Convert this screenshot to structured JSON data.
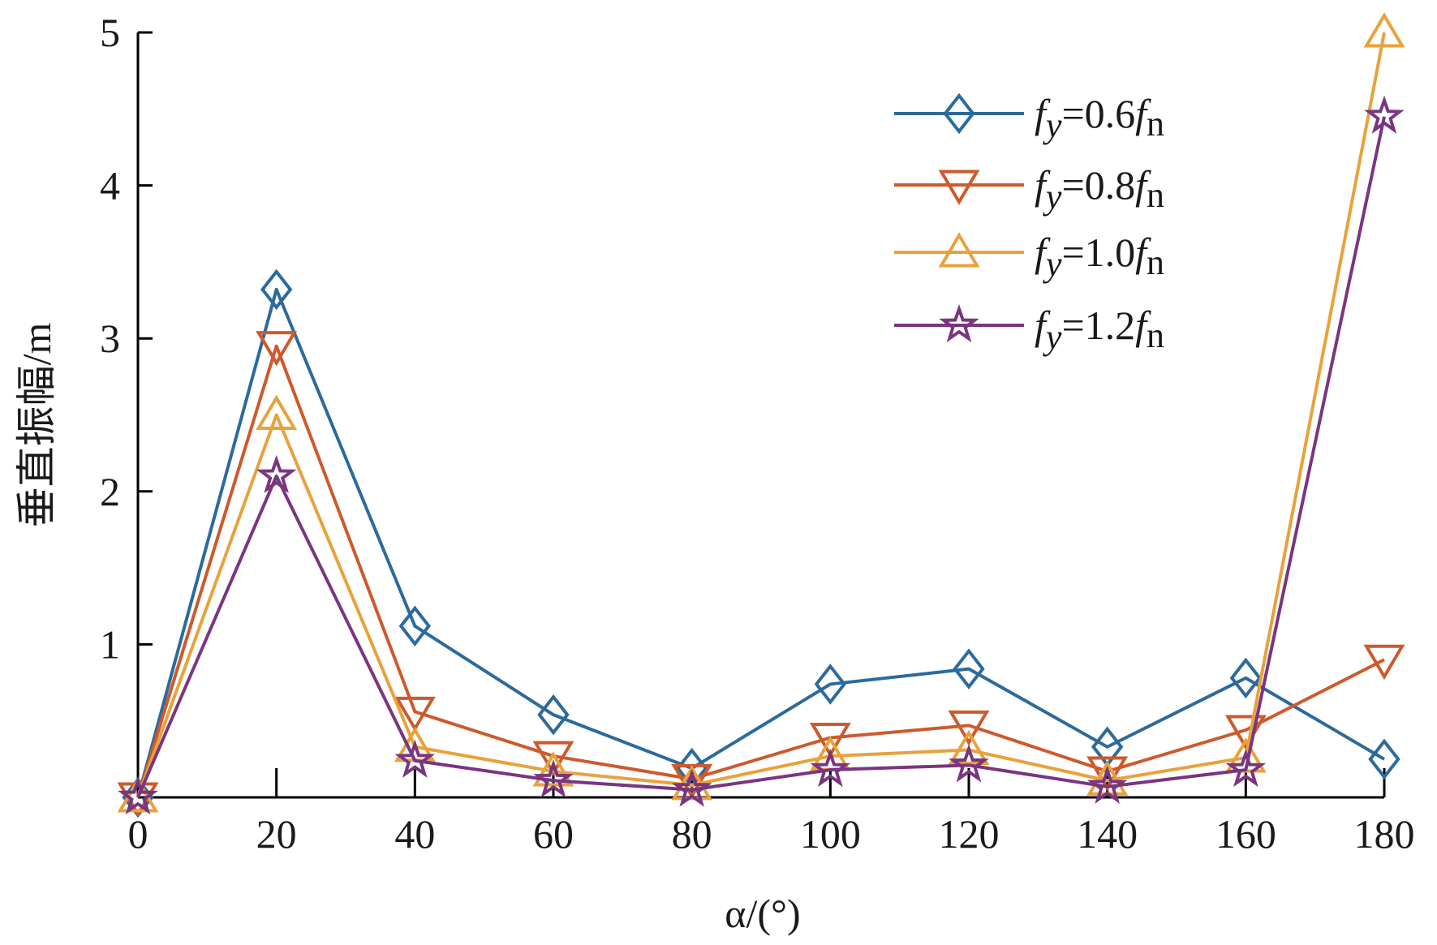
{
  "chart_data": {
    "type": "line",
    "title": "",
    "xlabel": "α/(°)",
    "ylabel": "垂直振幅/m",
    "x": [
      0,
      20,
      40,
      60,
      80,
      100,
      120,
      140,
      160,
      180
    ],
    "xlim": [
      0,
      180
    ],
    "ylim": [
      0,
      5
    ],
    "xticks": [
      0,
      20,
      40,
      60,
      80,
      100,
      120,
      140,
      160,
      180
    ],
    "yticks": [
      1,
      2,
      3,
      4,
      5
    ],
    "grid": false,
    "legend_position": "top-right",
    "series": [
      {
        "name": "fy=0.6fn",
        "label_parts": [
          "f",
          "y",
          "=0.6",
          "f",
          "n"
        ],
        "marker": "diamond",
        "color": "#2C6A9C",
        "values": [
          0,
          3.32,
          1.12,
          0.54,
          0.19,
          0.74,
          0.84,
          0.33,
          0.78,
          0.25
        ]
      },
      {
        "name": "fy=0.8fn",
        "label_parts": [
          "f",
          "y",
          "=0.8",
          "f",
          "n"
        ],
        "marker": "triangle-down",
        "color": "#CD5A2C",
        "values": [
          0,
          2.95,
          0.56,
          0.27,
          0.12,
          0.39,
          0.47,
          0.17,
          0.44,
          0.9
        ]
      },
      {
        "name": "fy=1.0fn",
        "label_parts": [
          "f",
          "y",
          "=1.0",
          "f",
          "n"
        ],
        "marker": "triangle-up",
        "color": "#E8A23C",
        "values": [
          0,
          2.5,
          0.33,
          0.17,
          0.08,
          0.27,
          0.31,
          0.11,
          0.26,
          5.0
        ]
      },
      {
        "name": "fy=1.2fn",
        "label_parts": [
          "f",
          "y",
          "=1.2",
          "f",
          "n"
        ],
        "marker": "star",
        "color": "#7A3580",
        "values": [
          0,
          2.1,
          0.24,
          0.11,
          0.05,
          0.18,
          0.21,
          0.07,
          0.18,
          4.45
        ]
      }
    ]
  }
}
